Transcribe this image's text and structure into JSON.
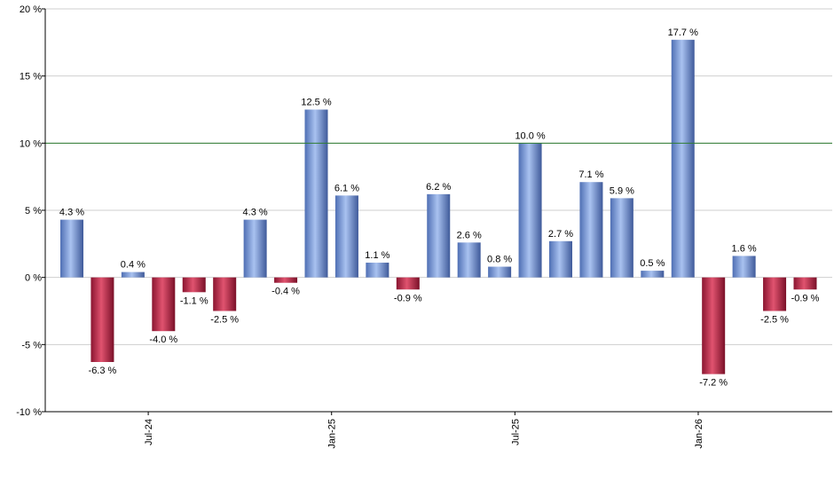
{
  "chart_data": {
    "type": "bar",
    "title": "",
    "xlabel": "",
    "ylabel": "",
    "ylim": [
      -10,
      20
    ],
    "y_ticks": [
      -10,
      -5,
      0,
      5,
      10,
      15,
      20
    ],
    "y_tick_labels": [
      "-10 %",
      "-5 %",
      "0 %",
      "5 %",
      "10 %",
      "15 %",
      "20 %"
    ],
    "reference_line": 10,
    "grid": true,
    "values": [
      4.3,
      -6.3,
      0.4,
      -4.0,
      -1.1,
      -2.5,
      4.3,
      -0.4,
      12.5,
      6.1,
      1.1,
      -0.9,
      6.2,
      2.6,
      0.8,
      10.0,
      2.7,
      7.1,
      5.9,
      0.5,
      17.7,
      -7.2,
      1.6,
      -2.5,
      -0.9
    ],
    "value_labels": [
      "4.3 %",
      "-6.3 %",
      "0.4 %",
      "-4.0 %",
      "-1.1 %",
      "-2.5 %",
      "4.3 %",
      "-0.4 %",
      "12.5 %",
      "6.1 %",
      "1.1 %",
      "-0.9 %",
      "6.2 %",
      "2.6 %",
      "0.8 %",
      "10.0 %",
      "2.7 %",
      "7.1 %",
      "5.9 %",
      "0.5 %",
      "17.7 %",
      "-7.2 %",
      "1.6 %",
      "-2.5 %",
      "-0.9 %"
    ],
    "x_tick_labels": [
      {
        "index": 2.5,
        "label": "Jul-24"
      },
      {
        "index": 8.5,
        "label": "Jan-25"
      },
      {
        "index": 14.5,
        "label": "Jul-25"
      },
      {
        "index": 20.5,
        "label": "Jan-26"
      }
    ],
    "colors": {
      "positive": "#7f9fd8",
      "negative": "#c0284a",
      "reference_line": "#2e7d32",
      "grid": "#cfcfcf",
      "axis": "#000000"
    }
  }
}
